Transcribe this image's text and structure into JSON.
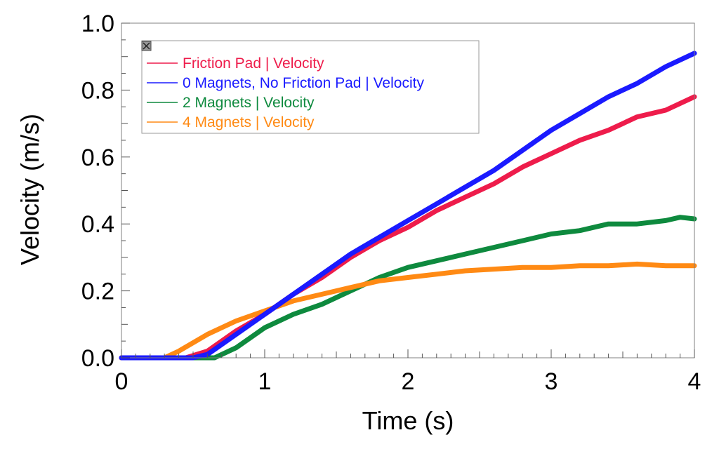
{
  "chart_data": {
    "type": "line",
    "xlabel": "Time (s)",
    "ylabel": "Velocity (m/s)",
    "xlim": [
      0,
      4
    ],
    "ylim": [
      0,
      1.0
    ],
    "x_ticks": [
      "0",
      "1",
      "2",
      "3",
      "4"
    ],
    "y_ticks": [
      "0.0",
      "0.2",
      "0.4",
      "0.6",
      "0.8",
      "1.0"
    ],
    "grid": false,
    "legend_position": "top-left",
    "series": [
      {
        "name": "Friction Pad | Velocity",
        "color": "#ee1c4b",
        "points": [
          [
            0,
            0
          ],
          [
            0.45,
            0
          ],
          [
            0.6,
            0.02
          ],
          [
            0.8,
            0.08
          ],
          [
            1.0,
            0.13
          ],
          [
            1.2,
            0.19
          ],
          [
            1.4,
            0.24
          ],
          [
            1.6,
            0.3
          ],
          [
            1.8,
            0.35
          ],
          [
            2.0,
            0.39
          ],
          [
            2.2,
            0.44
          ],
          [
            2.4,
            0.48
          ],
          [
            2.6,
            0.52
          ],
          [
            2.8,
            0.57
          ],
          [
            3.0,
            0.61
          ],
          [
            3.2,
            0.65
          ],
          [
            3.4,
            0.68
          ],
          [
            3.6,
            0.72
          ],
          [
            3.8,
            0.74
          ],
          [
            4.0,
            0.78
          ]
        ]
      },
      {
        "name": "0 Magnets, No Friction Pad | Velocity",
        "color": "#1a1aff",
        "points": [
          [
            0,
            0
          ],
          [
            0.5,
            0
          ],
          [
            0.6,
            0.01
          ],
          [
            0.8,
            0.07
          ],
          [
            1.0,
            0.13
          ],
          [
            1.2,
            0.19
          ],
          [
            1.4,
            0.25
          ],
          [
            1.6,
            0.31
          ],
          [
            1.8,
            0.36
          ],
          [
            2.0,
            0.41
          ],
          [
            2.2,
            0.46
          ],
          [
            2.4,
            0.51
          ],
          [
            2.6,
            0.56
          ],
          [
            2.8,
            0.62
          ],
          [
            3.0,
            0.68
          ],
          [
            3.2,
            0.73
          ],
          [
            3.4,
            0.78
          ],
          [
            3.6,
            0.82
          ],
          [
            3.8,
            0.87
          ],
          [
            4.0,
            0.91
          ]
        ]
      },
      {
        "name": "2 Magnets | Velocity",
        "color": "#0e8a3e",
        "points": [
          [
            0,
            0
          ],
          [
            0.65,
            0
          ],
          [
            0.8,
            0.03
          ],
          [
            1.0,
            0.09
          ],
          [
            1.2,
            0.13
          ],
          [
            1.4,
            0.16
          ],
          [
            1.6,
            0.2
          ],
          [
            1.8,
            0.24
          ],
          [
            2.0,
            0.27
          ],
          [
            2.2,
            0.29
          ],
          [
            2.4,
            0.31
          ],
          [
            2.6,
            0.33
          ],
          [
            2.8,
            0.35
          ],
          [
            3.0,
            0.37
          ],
          [
            3.2,
            0.38
          ],
          [
            3.4,
            0.4
          ],
          [
            3.6,
            0.4
          ],
          [
            3.8,
            0.41
          ],
          [
            3.9,
            0.42
          ],
          [
            4.0,
            0.415
          ]
        ]
      },
      {
        "name": "4 Magnets | Velocity",
        "color": "#ff8a14",
        "points": [
          [
            0,
            0
          ],
          [
            0.3,
            0
          ],
          [
            0.4,
            0.02
          ],
          [
            0.6,
            0.07
          ],
          [
            0.8,
            0.11
          ],
          [
            1.0,
            0.14
          ],
          [
            1.2,
            0.17
          ],
          [
            1.4,
            0.19
          ],
          [
            1.6,
            0.21
          ],
          [
            1.8,
            0.23
          ],
          [
            2.0,
            0.24
          ],
          [
            2.2,
            0.25
          ],
          [
            2.4,
            0.26
          ],
          [
            2.6,
            0.265
          ],
          [
            2.8,
            0.27
          ],
          [
            3.0,
            0.27
          ],
          [
            3.2,
            0.275
          ],
          [
            3.4,
            0.275
          ],
          [
            3.6,
            0.28
          ],
          [
            3.8,
            0.275
          ],
          [
            4.0,
            0.275
          ]
        ]
      }
    ]
  }
}
